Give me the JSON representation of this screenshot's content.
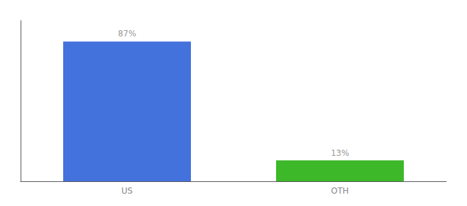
{
  "chart_data": {
    "type": "bar",
    "categories": [
      "US",
      "OTH"
    ],
    "values": [
      87,
      13
    ],
    "colors": [
      "#4472DD",
      "#3CB829"
    ],
    "value_labels": [
      "87%",
      "13%"
    ],
    "data_labels": true,
    "ylim": [
      0,
      100
    ],
    "tick_labels": "x",
    "grid": false
  }
}
